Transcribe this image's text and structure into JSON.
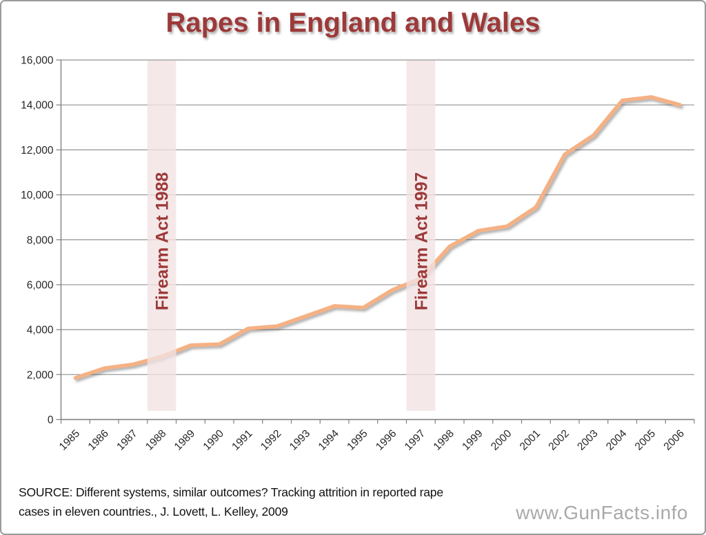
{
  "chart_data": {
    "type": "line",
    "title": "Rapes in England and Wales",
    "x": [
      1985,
      1986,
      1987,
      1988,
      1989,
      1990,
      1991,
      1992,
      1993,
      1994,
      1995,
      1996,
      1997,
      1998,
      1999,
      2000,
      2001,
      2002,
      2003,
      2004,
      2005,
      2006
    ],
    "values": [
      1850,
      2280,
      2450,
      2800,
      3300,
      3350,
      4050,
      4150,
      4600,
      5050,
      4980,
      5760,
      6280,
      7700,
      8400,
      8600,
      9450,
      11800,
      12650,
      14200,
      14350,
      14000
    ],
    "ylim": [
      0,
      16000
    ],
    "yticks": [
      0,
      2000,
      4000,
      6000,
      8000,
      10000,
      12000,
      14000,
      16000
    ],
    "xlabel": "",
    "ylabel": "",
    "grid": true,
    "legend": false,
    "annotations": [
      {
        "type": "vertical-band",
        "year": 1988,
        "label": "Firearm Act 1988"
      },
      {
        "type": "vertical-band",
        "year": 1997,
        "label": "Firearm Act 1997"
      }
    ]
  },
  "styles": {
    "title_color": "#9d3939",
    "line_color": "#f5b184",
    "band_fill": "#f2e2e2",
    "annotation_text_color": "#9d3939",
    "grid_color": "#919191",
    "axis_color": "#7f7f7f",
    "tick_label_color": "#262626"
  },
  "footer": {
    "source_line1": "SOURCE: Different systems, similar outcomes? Tracking attrition in reported rape",
    "source_line2": "cases in eleven countries., J. Lovett, L. Kelley, 2009",
    "watermark": "www.GunFacts.info"
  }
}
